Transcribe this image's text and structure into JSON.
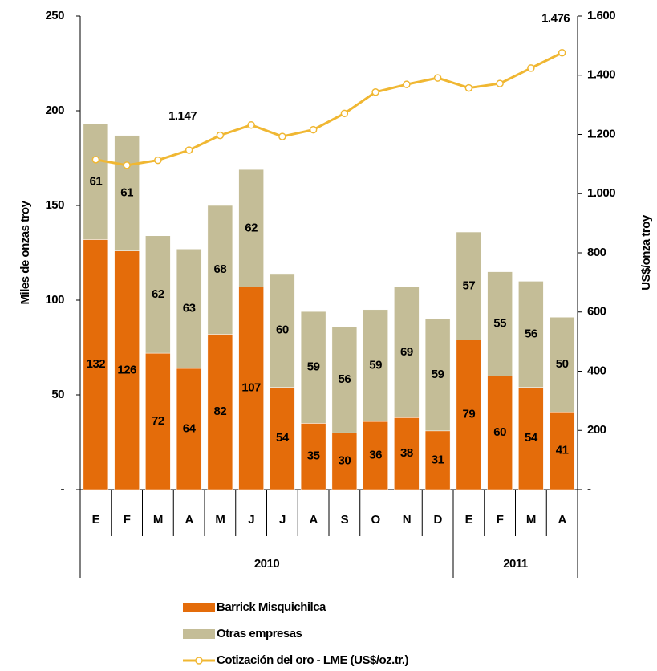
{
  "chart_data": {
    "type": "bar",
    "stacked": true,
    "categories": [
      "E",
      "F",
      "M",
      "A",
      "M",
      "J",
      "J",
      "A",
      "S",
      "O",
      "N",
      "D",
      "E",
      "F",
      "M",
      "A"
    ],
    "x_groups": [
      {
        "label": "2010",
        "span": 12
      },
      {
        "label": "2011",
        "span": 4
      }
    ],
    "ylabel": "Miles de onzas troy",
    "y2label": "US$/onza troy",
    "ylim": [
      0,
      250
    ],
    "yticks": [
      {
        "value": 0,
        "label": "-"
      },
      50,
      100,
      150,
      200,
      250
    ],
    "y2lim": [
      0,
      1600
    ],
    "y2ticks": [
      {
        "value": 0,
        "label": "-"
      },
      200,
      400,
      600,
      800,
      {
        "value": 1000,
        "label": "1.000"
      },
      {
        "value": 1200,
        "label": "1.200"
      },
      {
        "value": 1400,
        "label": "1.400"
      },
      {
        "value": 1600,
        "label": "1.600"
      }
    ],
    "legend": "bottom",
    "series": [
      {
        "name": "Barrick Misquichilca",
        "color": "#e46c0a",
        "values": [
          132,
          126,
          72,
          64,
          82,
          107,
          54,
          35,
          30,
          36,
          38,
          31,
          79,
          60,
          54,
          41
        ]
      },
      {
        "name": "Otras empresas",
        "color": "#c4bd97",
        "values": [
          61,
          61,
          62,
          63,
          68,
          62,
          60,
          59,
          56,
          59,
          69,
          59,
          57,
          55,
          56,
          50
        ]
      },
      {
        "name": "Cotización del oro - LME (US$/oz.tr.)",
        "color": "#f0b732",
        "type": "line",
        "axis": "y2",
        "values": [
          1115,
          1096,
          1113,
          1147,
          1197,
          1232,
          1193,
          1216,
          1271,
          1343,
          1369,
          1391,
          1357,
          1372,
          1424,
          1476
        ],
        "value_labels": [
          null,
          null,
          null,
          "1.147",
          null,
          null,
          null,
          null,
          null,
          null,
          null,
          null,
          null,
          null,
          null,
          "1.476"
        ]
      }
    ]
  }
}
